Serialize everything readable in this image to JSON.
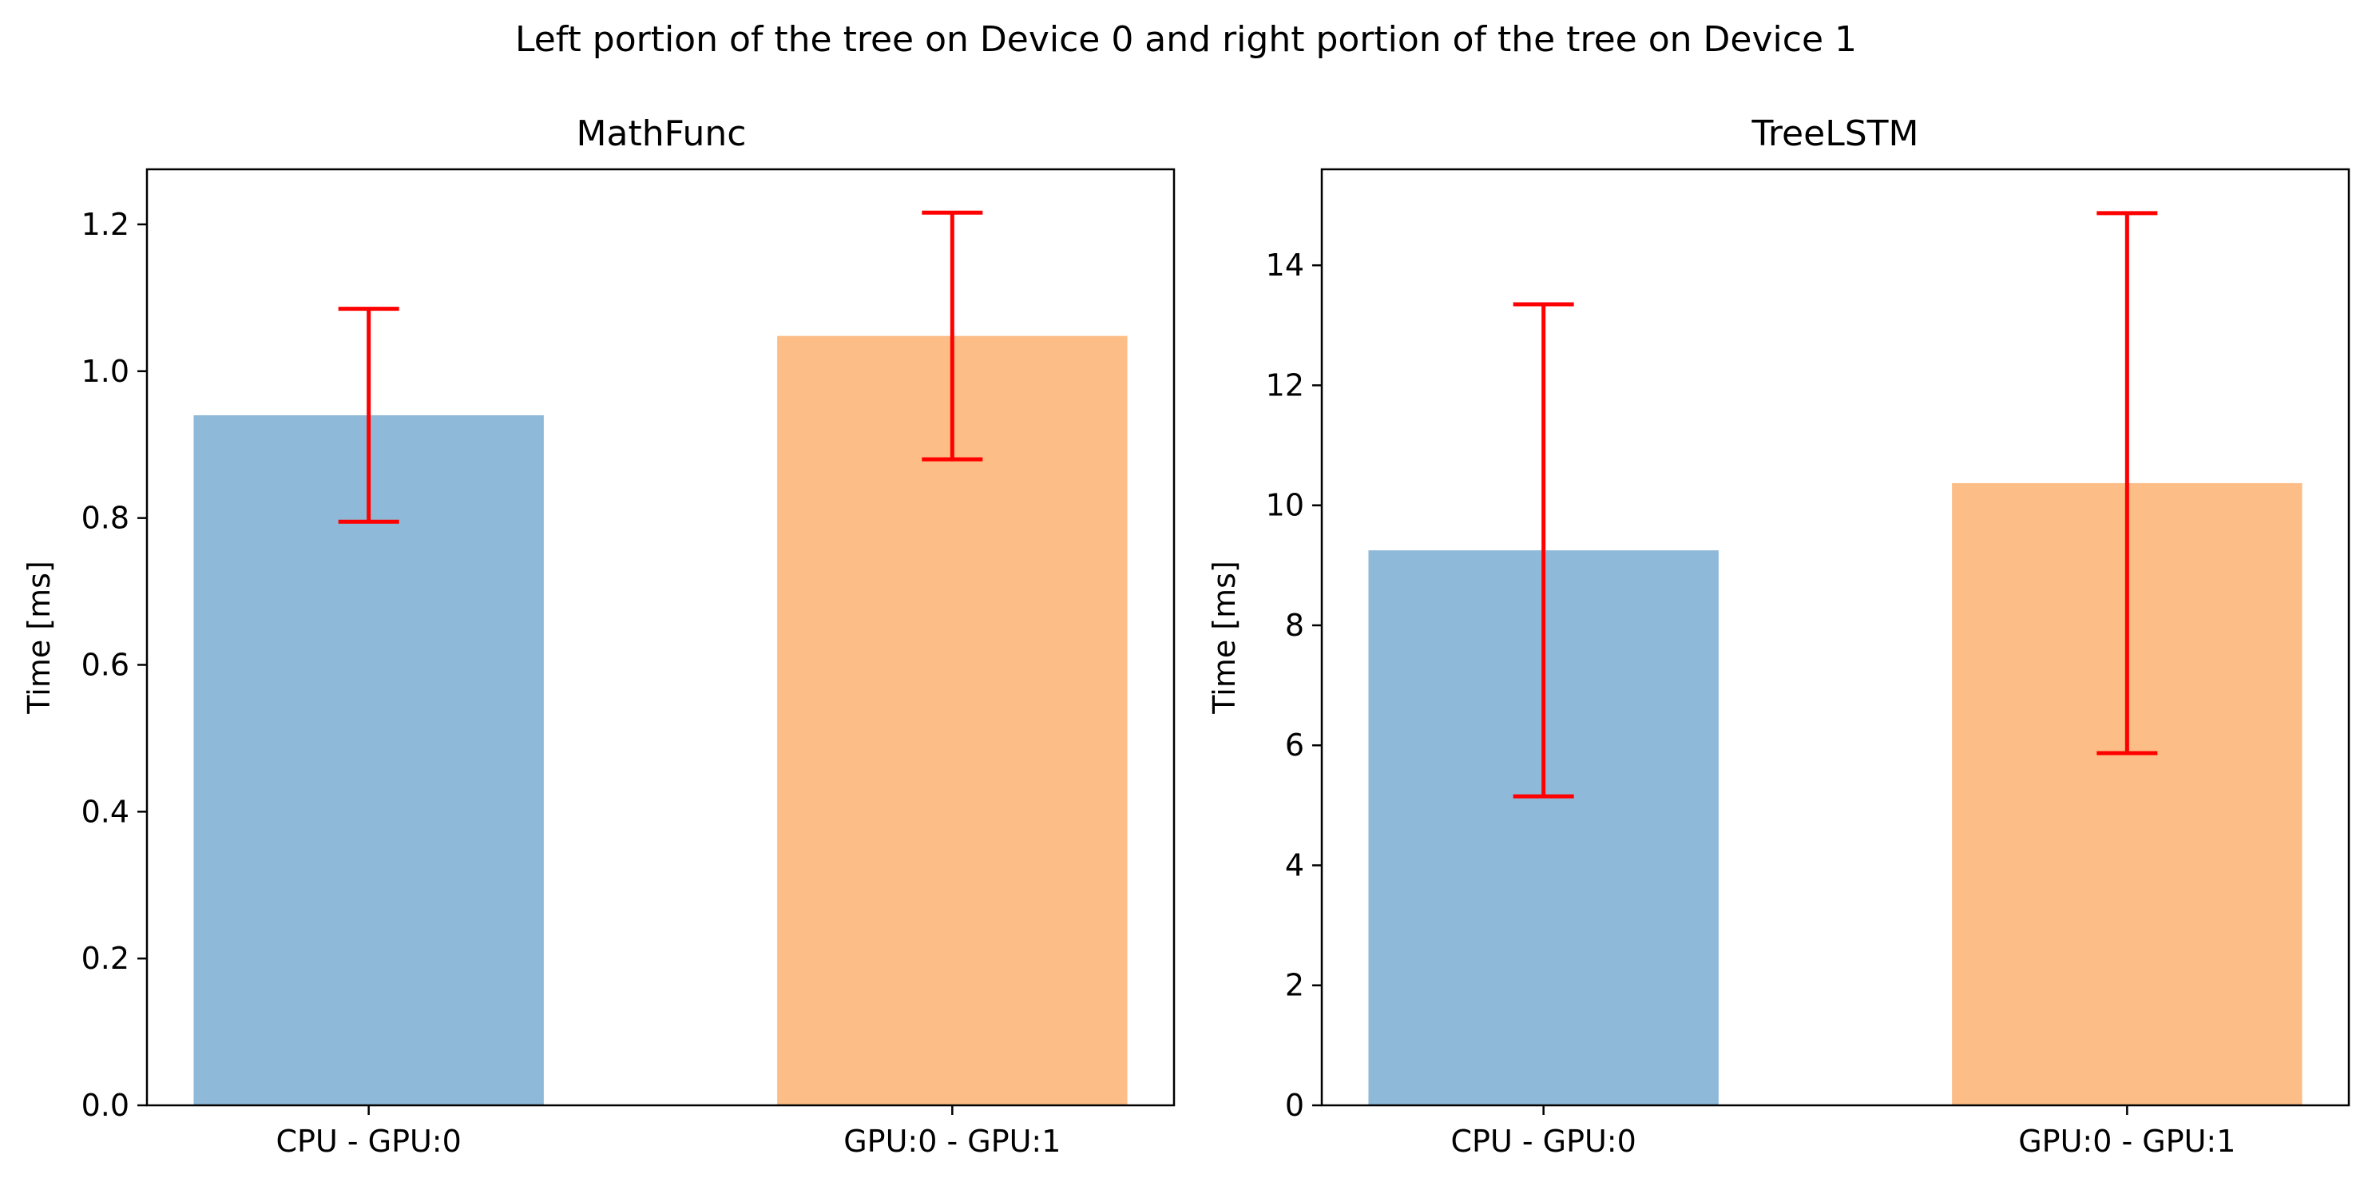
{
  "figure": {
    "suptitle": "Left portion of the tree on Device 0 and right portion of the tree on Device 1"
  },
  "chart_data": [
    {
      "type": "bar",
      "title": "MathFunc",
      "xlabel": "",
      "ylabel": "Time [ms]",
      "categories": [
        "CPU - GPU:0",
        "GPU:0 - GPU:1"
      ],
      "values": [
        0.94,
        1.048
      ],
      "errors": [
        0.145,
        0.168
      ],
      "colors": [
        "#8fb9d8",
        "#fdbd86"
      ],
      "error_color": "#ff0000",
      "ylim": [
        0,
        1.275
      ],
      "yticks": [
        0.0,
        0.2,
        0.4,
        0.6,
        0.8,
        1.0,
        1.2
      ],
      "ytick_labels": [
        "0.0",
        "0.2",
        "0.4",
        "0.6",
        "0.8",
        "1.0",
        "1.2"
      ],
      "grid": false,
      "legend": "none"
    },
    {
      "type": "bar",
      "title": "TreeLSTM",
      "xlabel": "",
      "ylabel": "Time [ms]",
      "categories": [
        "CPU - GPU:0",
        "GPU:0 - GPU:1"
      ],
      "values": [
        9.25,
        10.37
      ],
      "errors": [
        4.1,
        4.5
      ],
      "colors": [
        "#8fb9d8",
        "#fdbd86"
      ],
      "error_color": "#ff0000",
      "ylim": [
        0,
        15.6
      ],
      "yticks": [
        0,
        2,
        4,
        6,
        8,
        10,
        12,
        14
      ],
      "ytick_labels": [
        "0",
        "2",
        "4",
        "6",
        "8",
        "10",
        "12",
        "14"
      ],
      "grid": false,
      "legend": "none"
    }
  ]
}
